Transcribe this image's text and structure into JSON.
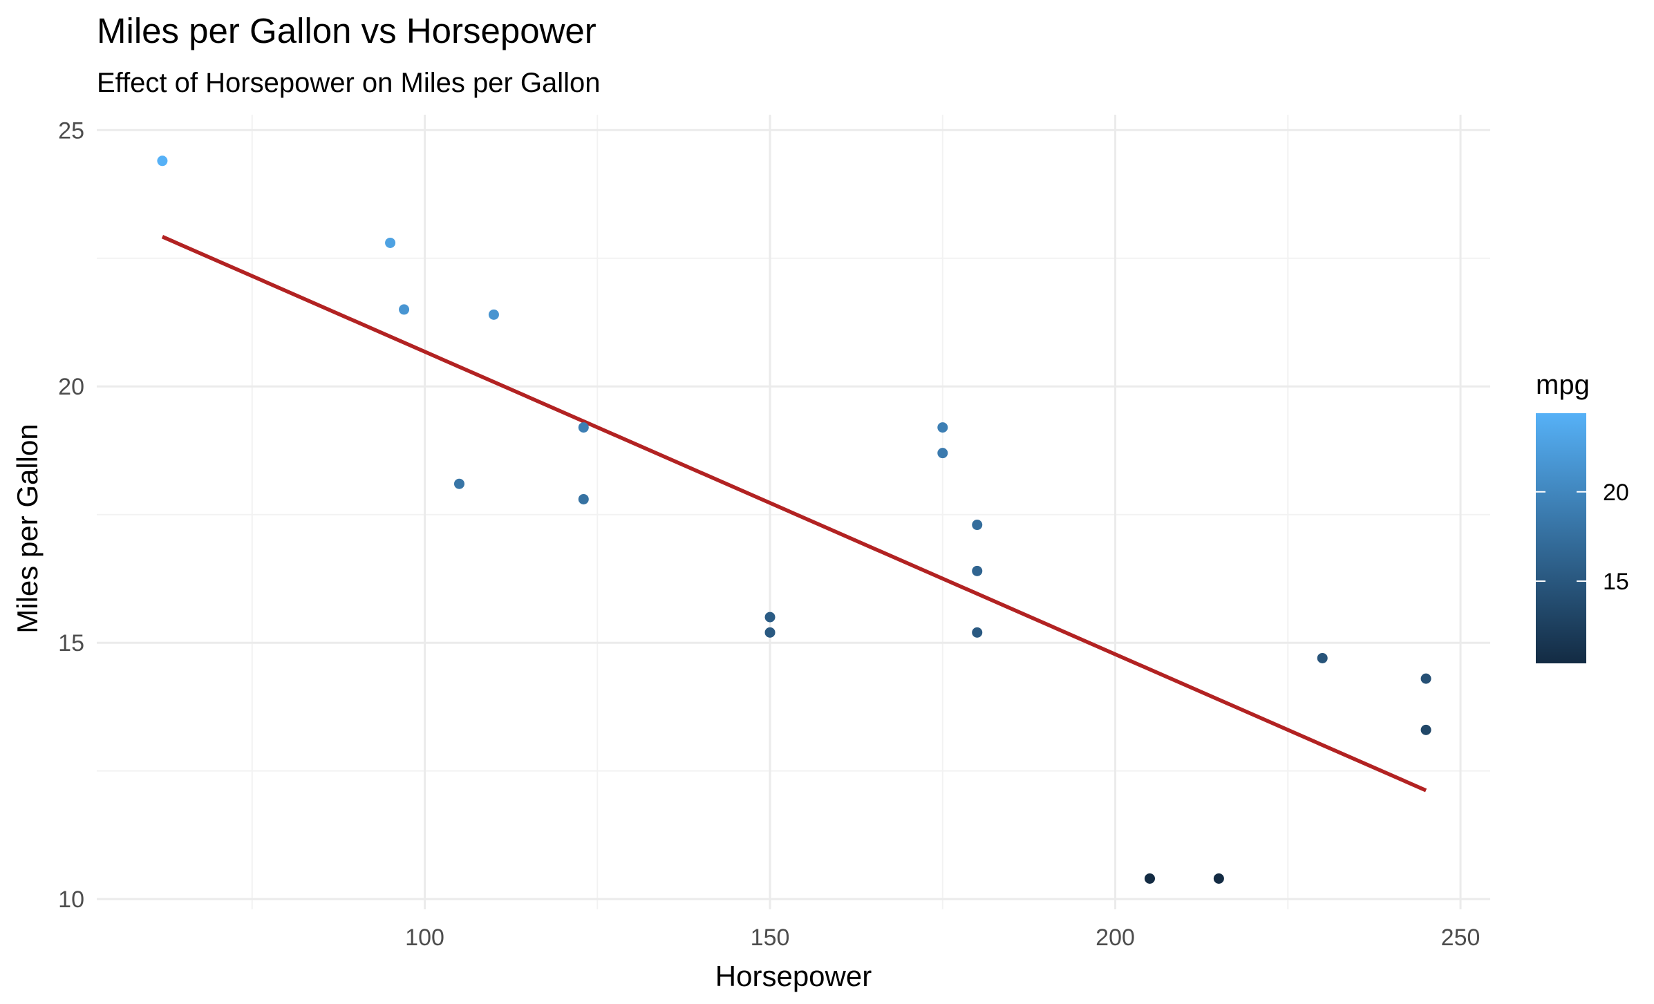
{
  "chart_data": {
    "type": "scatter",
    "title": "Miles per Gallon vs Horsepower",
    "subtitle": "Effect of Horsepower on Miles per Gallon",
    "xlabel": "Horsepower",
    "ylabel": "Miles per Gallon",
    "xlim": [
      52.5,
      254.3
    ],
    "ylim": [
      9.8,
      25.3
    ],
    "x_ticks": [
      100,
      150,
      200,
      250
    ],
    "y_ticks": [
      10,
      15,
      20,
      25
    ],
    "x_tick_labels": [
      "100",
      "150",
      "200",
      "250"
    ],
    "y_tick_labels": [
      "10",
      "15",
      "20",
      "25"
    ],
    "grid": true,
    "points": [
      {
        "x": 62,
        "y": 24.4
      },
      {
        "x": 95,
        "y": 22.8
      },
      {
        "x": 97,
        "y": 21.5
      },
      {
        "x": 110,
        "y": 21.4
      },
      {
        "x": 105,
        "y": 18.1
      },
      {
        "x": 123,
        "y": 19.2
      },
      {
        "x": 123,
        "y": 17.8
      },
      {
        "x": 150,
        "y": 15.5
      },
      {
        "x": 150,
        "y": 15.2
      },
      {
        "x": 175,
        "y": 19.2
      },
      {
        "x": 175,
        "y": 18.7
      },
      {
        "x": 180,
        "y": 17.3
      },
      {
        "x": 180,
        "y": 16.4
      },
      {
        "x": 180,
        "y": 15.2
      },
      {
        "x": 205,
        "y": 10.4
      },
      {
        "x": 215,
        "y": 10.4
      },
      {
        "x": 230,
        "y": 14.7
      },
      {
        "x": 245,
        "y": 14.3
      },
      {
        "x": 245,
        "y": 13.3
      }
    ],
    "trend_line": {
      "type": "linear",
      "color": "#b22222",
      "x": [
        62,
        245
      ],
      "y": [
        22.92,
        12.12
      ]
    },
    "color_scale": {
      "variable": "mpg",
      "low_color": "#132b43",
      "high_color": "#56b1f7",
      "range": [
        10.4,
        24.4
      ],
      "breaks": [
        15,
        20
      ],
      "break_labels": [
        "15",
        "20"
      ],
      "legend_position": "right"
    }
  }
}
